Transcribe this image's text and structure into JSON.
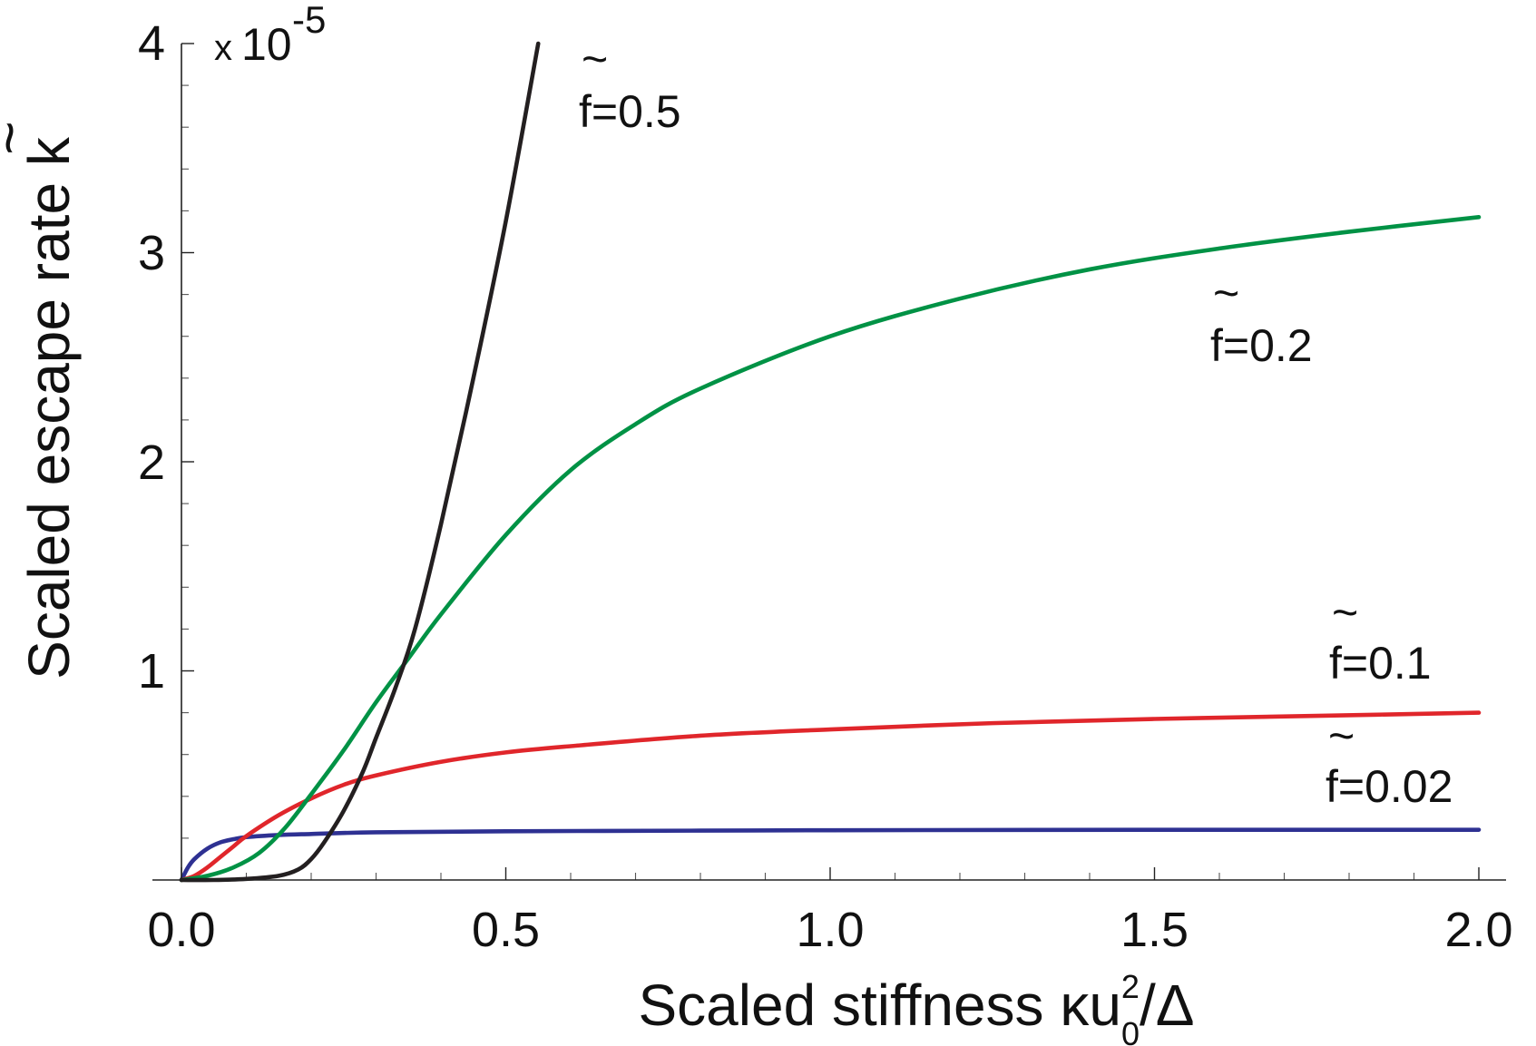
{
  "chart_data": {
    "type": "line",
    "title": "",
    "xlabel": "Scaled stiffness κu",
    "xlabel_sup": "2",
    "xlabel_sub": "0",
    "xlabel_tail": "/Δ",
    "ylabel": "Scaled escape rate  k",
    "ylabel_accent": "~",
    "y_multiplier": {
      "prefix": "x",
      "base": "10",
      "exponent": "-5"
    },
    "xlim": [
      0,
      2.0
    ],
    "ylim": [
      0,
      4
    ],
    "x_ticks": [
      {
        "value": 0.0,
        "label": "0.0"
      },
      {
        "value": 0.5,
        "label": "0.5"
      },
      {
        "value": 1.0,
        "label": "1.0"
      },
      {
        "value": 1.5,
        "label": "1.5"
      },
      {
        "value": 2.0,
        "label": "2.0"
      }
    ],
    "y_ticks": [
      {
        "value": 1,
        "label": "1"
      },
      {
        "value": 2,
        "label": "2"
      },
      {
        "value": 3,
        "label": "3"
      },
      {
        "value": 4,
        "label": "4"
      }
    ],
    "x_minor_step": 0.1,
    "y_minor_step": 0.2,
    "grid": false,
    "legend": "inline labels",
    "series": [
      {
        "name": "f=0.02",
        "label_accent": "~",
        "label_text": "f=0.02",
        "color": "#2e3192",
        "label_near": [
          1.95,
          0.45
        ],
        "x": [
          0.0,
          0.01,
          0.02,
          0.04,
          0.06,
          0.08,
          0.1,
          0.15,
          0.2,
          0.3,
          0.5,
          0.8,
          1.0,
          1.5,
          2.0
        ],
        "y": [
          0.0,
          0.06,
          0.1,
          0.15,
          0.18,
          0.195,
          0.205,
          0.215,
          0.22,
          0.228,
          0.233,
          0.236,
          0.238,
          0.24,
          0.24
        ]
      },
      {
        "name": "f=0.1",
        "label_accent": "~",
        "label_text": "f=0.1",
        "color": "#e0262b",
        "label_near": [
          1.95,
          1.06
        ],
        "x": [
          0.0,
          0.02,
          0.04,
          0.06,
          0.08,
          0.1,
          0.15,
          0.2,
          0.25,
          0.3,
          0.4,
          0.5,
          0.6,
          0.8,
          1.0,
          1.25,
          1.5,
          1.75,
          2.0
        ],
        "y": [
          0.0,
          0.02,
          0.06,
          0.11,
          0.16,
          0.21,
          0.31,
          0.39,
          0.455,
          0.5,
          0.565,
          0.61,
          0.64,
          0.69,
          0.72,
          0.75,
          0.77,
          0.785,
          0.8
        ]
      },
      {
        "name": "f=0.2",
        "label_accent": "~",
        "label_text": "f=0.2",
        "color": "#009245",
        "label_near": [
          1.55,
          2.5
        ],
        "x": [
          0.0,
          0.04,
          0.08,
          0.12,
          0.16,
          0.2,
          0.25,
          0.3,
          0.35,
          0.4,
          0.5,
          0.6,
          0.7,
          0.8,
          1.0,
          1.2,
          1.4,
          1.6,
          1.8,
          2.0
        ],
        "y": [
          0.0,
          0.02,
          0.06,
          0.13,
          0.25,
          0.41,
          0.62,
          0.85,
          1.06,
          1.27,
          1.65,
          1.96,
          2.18,
          2.35,
          2.6,
          2.78,
          2.92,
          3.02,
          3.1,
          3.17
        ]
      },
      {
        "name": "f=0.5",
        "label_accent": "~",
        "label_text": "f=0.5",
        "color": "#231f20",
        "label_near": [
          0.65,
          3.9
        ],
        "x": [
          0.0,
          0.05,
          0.1,
          0.15,
          0.18,
          0.2,
          0.22,
          0.25,
          0.28,
          0.3,
          0.33,
          0.36,
          0.4,
          0.45,
          0.5,
          0.55
        ],
        "y": [
          0.0,
          0.0,
          0.005,
          0.02,
          0.05,
          0.1,
          0.18,
          0.33,
          0.52,
          0.68,
          0.92,
          1.2,
          1.7,
          2.4,
          3.15,
          4.0
        ]
      }
    ]
  }
}
